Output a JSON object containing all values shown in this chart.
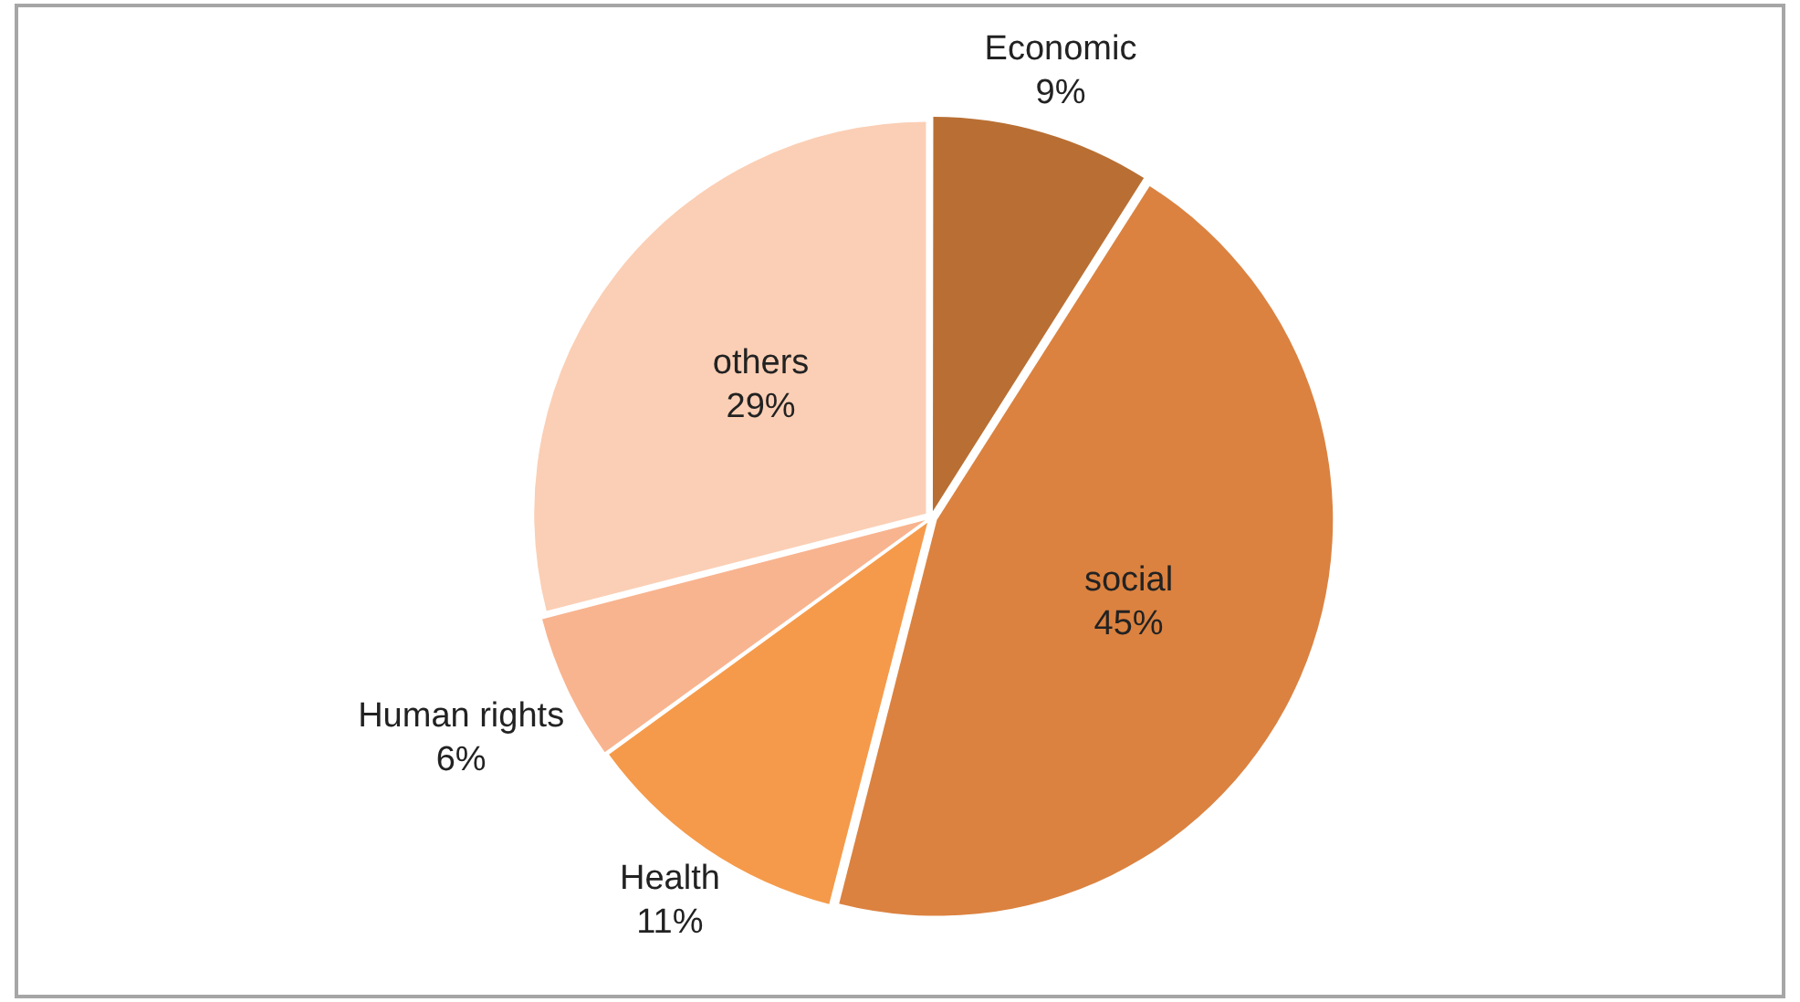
{
  "chart_data": {
    "type": "pie",
    "categories": [
      "Economic",
      "social",
      "Health",
      "Human rights",
      "others"
    ],
    "values": [
      9,
      45,
      11,
      6,
      29
    ],
    "value_labels": [
      "9%",
      "45%",
      "11%",
      "6%",
      "29%"
    ],
    "colors": [
      "#b96f33",
      "#db8240",
      "#f59a4a",
      "#f8b48f",
      "#fbcfb5"
    ],
    "legend": false
  }
}
